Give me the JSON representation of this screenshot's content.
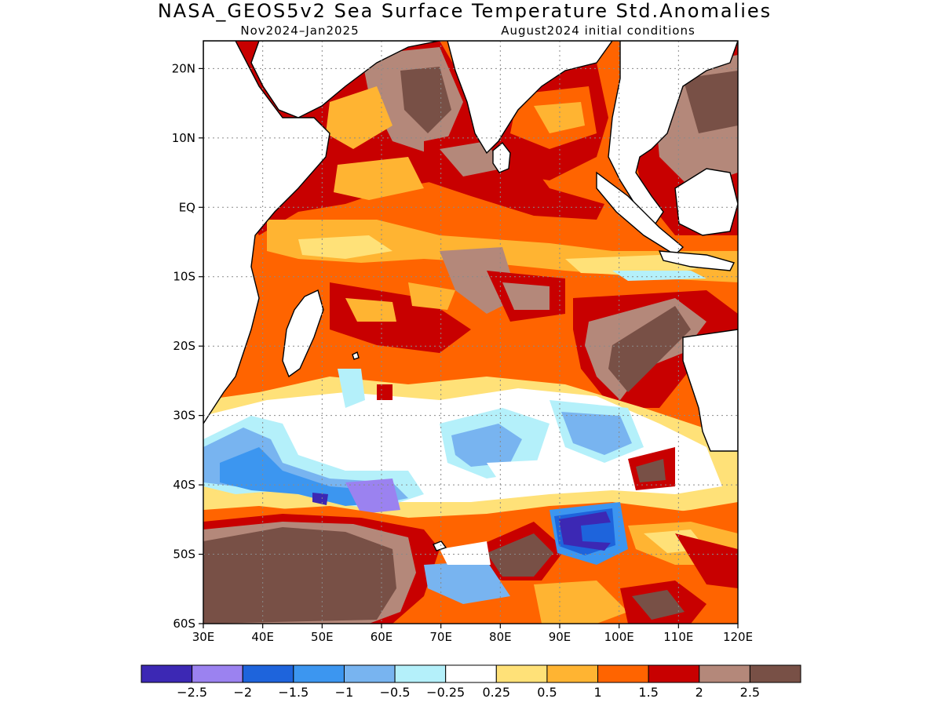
{
  "title": "NASA_GEOS5v2 Sea Surface Temperature Std.Anomalies",
  "subtitle_left": "Nov2024–Jan2025",
  "subtitle_right": "August2024 initial conditions",
  "axes": {
    "lon_range": [
      30,
      120
    ],
    "lat_range": [
      -60,
      24
    ],
    "x_ticks": [
      "30E",
      "40E",
      "50E",
      "60E",
      "70E",
      "80E",
      "90E",
      "100E",
      "110E",
      "120E"
    ],
    "y_ticks": [
      "20N",
      "10N",
      "EQ",
      "10S",
      "20S",
      "30S",
      "40S",
      "50S",
      "60S"
    ],
    "grid": "dotted"
  },
  "colorbar": {
    "colors": [
      "#3c28b4",
      "#9b82f0",
      "#1e64dc",
      "#3c96f0",
      "#78b4f0",
      "#b4f0fa",
      "#ffffff",
      "#ffe178",
      "#ffb432",
      "#ff6400",
      "#c80000",
      "#b4887a",
      "#785046"
    ],
    "labels": [
      "−2.5",
      "−2",
      "−1.5",
      "−1",
      "−0.5",
      "−0.25",
      "0.25",
      "0.5",
      "1",
      "1.5",
      "2",
      "2.5"
    ]
  },
  "legend_colors": {
    "land": "#ffffff",
    "coast": "#000000"
  }
}
